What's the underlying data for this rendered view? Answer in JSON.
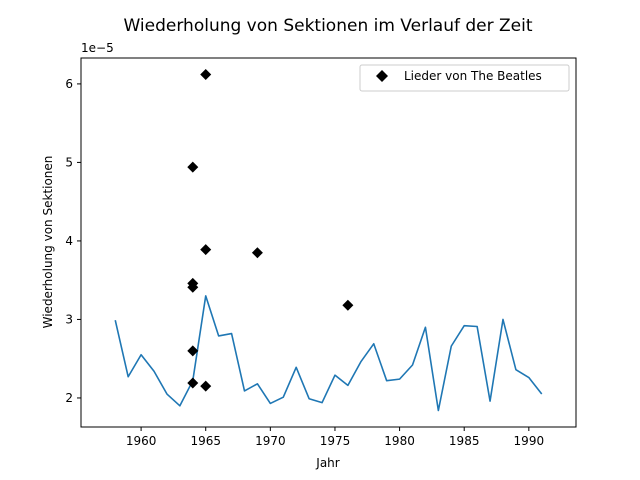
{
  "chart_data": {
    "type": "line",
    "title": "Wiederholung von Sektionen im Verlauf der Zeit",
    "xlabel": "Jahr",
    "ylabel": "Wiederholung von Sektionen",
    "offset_text": "1e−5",
    "xlim": [
      1955.35,
      1993.65
    ],
    "ylim": [
      1.63e-05,
      6.33e-05
    ],
    "x_ticks": [
      1960,
      1965,
      1970,
      1975,
      1980,
      1985,
      1990
    ],
    "x_tick_labels": [
      "1960",
      "1965",
      "1970",
      "1975",
      "1980",
      "1985",
      "1990"
    ],
    "y_ticks": [
      2e-05,
      3e-05,
      4e-05,
      5e-05,
      6e-05
    ],
    "y_tick_labels": [
      "2",
      "3",
      "4",
      "5",
      "6"
    ],
    "grid": false,
    "legend": {
      "position": "top-right",
      "entries": [
        "Lieder von The Beatles"
      ]
    },
    "line_series": {
      "color": "#1f77b4",
      "x": [
        1958,
        1959,
        1960,
        1961,
        1962,
        1963,
        1964,
        1965,
        1966,
        1967,
        1968,
        1969,
        1970,
        1971,
        1972,
        1973,
        1974,
        1975,
        1976,
        1977,
        1978,
        1979,
        1980,
        1981,
        1982,
        1983,
        1984,
        1985,
        1986,
        1987,
        1988,
        1989,
        1990,
        1991
      ],
      "y": [
        2.99e-05,
        2.27e-05,
        2.55e-05,
        2.34e-05,
        2.05e-05,
        1.9e-05,
        2.22e-05,
        3.3e-05,
        2.79e-05,
        2.82e-05,
        2.09e-05,
        2.18e-05,
        1.93e-05,
        2.01e-05,
        2.39e-05,
        1.99e-05,
        1.94e-05,
        2.29e-05,
        2.16e-05,
        2.46e-05,
        2.69e-05,
        2.22e-05,
        2.24e-05,
        2.42e-05,
        2.9e-05,
        1.84e-05,
        2.66e-05,
        2.92e-05,
        2.91e-05,
        1.96e-05,
        3e-05,
        2.36e-05,
        2.26e-05,
        2.05e-05
      ]
    },
    "scatter_series": {
      "name": "Lieder von The Beatles",
      "color": "#000000",
      "marker": "diamond",
      "points": [
        {
          "x": 1965,
          "y": 6.12e-05
        },
        {
          "x": 1964,
          "y": 4.94e-05
        },
        {
          "x": 1965,
          "y": 3.89e-05
        },
        {
          "x": 1969,
          "y": 3.85e-05
        },
        {
          "x": 1964,
          "y": 3.46e-05
        },
        {
          "x": 1964,
          "y": 3.41e-05
        },
        {
          "x": 1976,
          "y": 3.18e-05
        },
        {
          "x": 1964,
          "y": 2.6e-05
        },
        {
          "x": 1964,
          "y": 2.19e-05
        },
        {
          "x": 1965,
          "y": 2.15e-05
        }
      ]
    }
  }
}
